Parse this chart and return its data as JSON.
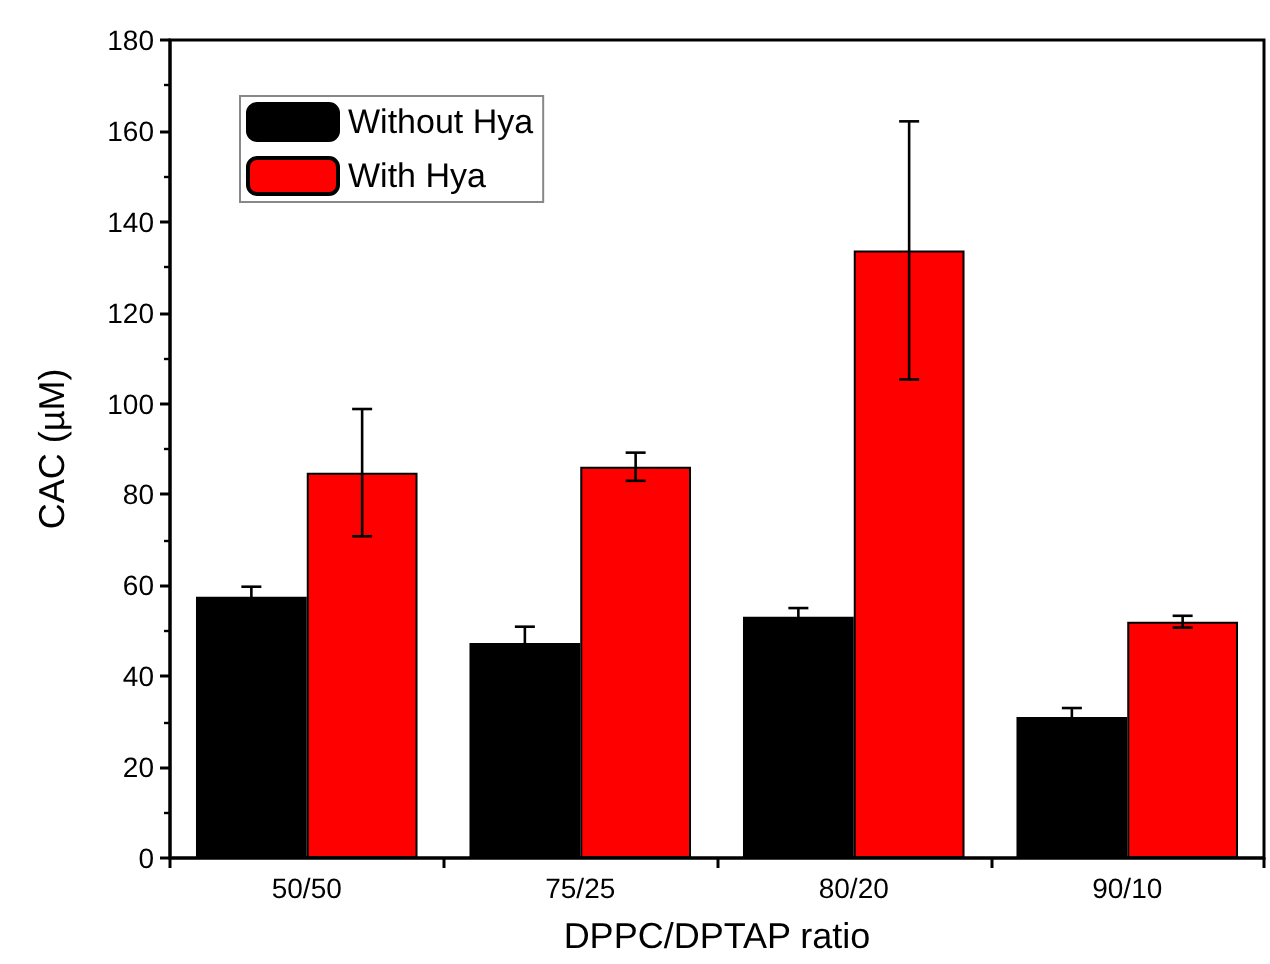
{
  "chart_data": {
    "type": "bar",
    "xlabel": "DPPC/DPTAP ratio",
    "ylabel": "CAC (µM)",
    "categories": [
      "50/50",
      "75/25",
      "80/20",
      "90/10"
    ],
    "series": [
      {
        "name": "Without Hya",
        "color": "#000000",
        "values": [
          57.5,
          47.3,
          53.1,
          31.0
        ],
        "errors": [
          2.2,
          3.6,
          1.9,
          2.0
        ]
      },
      {
        "name": "With Hya",
        "color": "#ff0000",
        "values": [
          84.8,
          86.1,
          133.7,
          52.0
        ],
        "errors": [
          14.0,
          3.1,
          28.4,
          1.3
        ]
      }
    ],
    "ylim": [
      0,
      180
    ],
    "yticks": [
      0,
      20,
      40,
      60,
      80,
      100,
      120,
      140,
      160,
      180
    ],
    "grid": false,
    "legend": "top left"
  }
}
